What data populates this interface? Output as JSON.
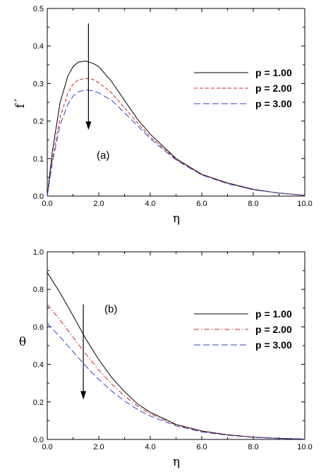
{
  "chart_data": [
    {
      "type": "line",
      "annotation": "(a)",
      "xlabel": "η",
      "ylabel": "f´",
      "xlim": [
        0,
        10
      ],
      "ylim": [
        0,
        0.5
      ],
      "xticks": [
        "0.0",
        "2.0",
        "4.0",
        "6.0",
        "8.0",
        "10.0"
      ],
      "yticks": [
        "0.0",
        "0.1",
        "0.2",
        "0.3",
        "0.4",
        "0.5"
      ],
      "legend_position": "top-right",
      "arrow": {
        "x": 1.6,
        "from": 0.46,
        "to": 0.18
      },
      "series": [
        {
          "name": "p = 1.00",
          "color": "#000000",
          "dash": "solid",
          "x": [
            0,
            0.2,
            0.5,
            0.8,
            1.0,
            1.2,
            1.5,
            1.8,
            2.0,
            2.5,
            3.0,
            3.5,
            4.0,
            5.0,
            6.0,
            7.0,
            8.0,
            9.0,
            10.0
          ],
          "y": [
            0,
            0.12,
            0.25,
            0.32,
            0.345,
            0.357,
            0.36,
            0.353,
            0.345,
            0.305,
            0.255,
            0.205,
            0.165,
            0.1,
            0.058,
            0.035,
            0.018,
            0.008,
            0.002
          ]
        },
        {
          "name": "p = 2.00",
          "color": "#cc2222",
          "dash": "dashed",
          "x": [
            0,
            0.2,
            0.5,
            0.8,
            1.0,
            1.2,
            1.5,
            1.8,
            2.0,
            2.5,
            3.0,
            3.5,
            4.0,
            5.0,
            6.0,
            7.0,
            8.0,
            9.0,
            10.0
          ],
          "y": [
            0,
            0.1,
            0.21,
            0.275,
            0.298,
            0.31,
            0.314,
            0.31,
            0.302,
            0.275,
            0.235,
            0.195,
            0.158,
            0.098,
            0.057,
            0.034,
            0.017,
            0.008,
            0.002
          ]
        },
        {
          "name": "p = 3.00",
          "color": "#3344cc",
          "dash": "longdash",
          "x": [
            0,
            0.2,
            0.5,
            0.8,
            1.0,
            1.2,
            1.5,
            1.8,
            2.0,
            2.5,
            3.0,
            3.5,
            4.0,
            5.0,
            6.0,
            7.0,
            8.0,
            9.0,
            10.0
          ],
          "y": [
            0,
            0.09,
            0.19,
            0.245,
            0.266,
            0.278,
            0.283,
            0.28,
            0.275,
            0.255,
            0.222,
            0.188,
            0.153,
            0.096,
            0.056,
            0.033,
            0.017,
            0.008,
            0.002
          ]
        }
      ]
    },
    {
      "type": "line",
      "annotation": "(b)",
      "xlabel": "η",
      "ylabel": "θ",
      "xlim": [
        0,
        10
      ],
      "ylim": [
        0,
        1
      ],
      "xticks": [
        "0.0",
        "2.0",
        "4.0",
        "6.0",
        "8.0",
        "10.0"
      ],
      "yticks": [
        "0.0",
        "0.2",
        "0.4",
        "0.6",
        "0.8",
        "1.0"
      ],
      "legend_position": "top-right",
      "arrow": {
        "x": 1.4,
        "from": 0.72,
        "to": 0.22
      },
      "series": [
        {
          "name": "p = 1.00",
          "color": "#000000",
          "dash": "solid",
          "x": [
            0,
            0.5,
            1.0,
            1.5,
            2.0,
            2.5,
            3.0,
            3.5,
            4.0,
            5.0,
            6.0,
            7.0,
            8.0,
            9.0,
            10.0
          ],
          "y": [
            0.89,
            0.78,
            0.66,
            0.535,
            0.425,
            0.33,
            0.255,
            0.19,
            0.145,
            0.08,
            0.045,
            0.025,
            0.012,
            0.006,
            0.002
          ]
        },
        {
          "name": "p = 2.00",
          "color": "#cc2222",
          "dash": "dashdot",
          "x": [
            0,
            0.5,
            1.0,
            1.5,
            2.0,
            2.5,
            3.0,
            3.5,
            4.0,
            5.0,
            6.0,
            7.0,
            8.0,
            9.0,
            10.0
          ],
          "y": [
            0.72,
            0.635,
            0.545,
            0.455,
            0.37,
            0.295,
            0.232,
            0.178,
            0.137,
            0.077,
            0.043,
            0.024,
            0.012,
            0.006,
            0.002
          ]
        },
        {
          "name": "p = 3.00",
          "color": "#3344cc",
          "dash": "longdash",
          "x": [
            0,
            0.5,
            1.0,
            1.5,
            2.0,
            2.5,
            3.0,
            3.5,
            4.0,
            5.0,
            6.0,
            7.0,
            8.0,
            9.0,
            10.0
          ],
          "y": [
            0.62,
            0.545,
            0.468,
            0.39,
            0.32,
            0.258,
            0.205,
            0.16,
            0.125,
            0.072,
            0.04,
            0.022,
            0.011,
            0.005,
            0.002
          ]
        }
      ]
    }
  ]
}
